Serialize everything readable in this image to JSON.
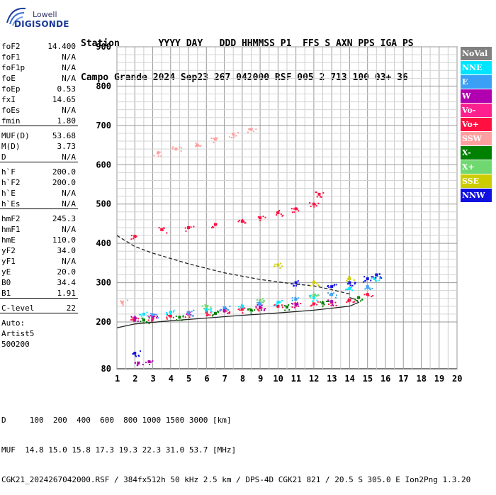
{
  "logo": {
    "line1": "Lowell",
    "line2": "DIGISONDE"
  },
  "header": {
    "line1": "Station       YYYY DAY   DDD HHMMSS P1  FFS S AXN PPS IGA PS",
    "line2": "Campo Grande 2024 Sep23 267 042000 RSF 005 2 713 100 03+ 36"
  },
  "params": {
    "group1": [
      {
        "name": "foF2",
        "value": "14.400"
      },
      {
        "name": "foF1",
        "value": "N/A"
      },
      {
        "name": "foF1p",
        "value": "N/A"
      },
      {
        "name": "foE",
        "value": "N/A"
      },
      {
        "name": "foEp",
        "value": "0.53"
      },
      {
        "name": "fxI",
        "value": "14.65"
      },
      {
        "name": "foEs",
        "value": "N/A"
      },
      {
        "name": "fmin",
        "value": "1.80"
      }
    ],
    "group2": [
      {
        "name": "MUF(D)",
        "value": "53.68"
      },
      {
        "name": "M(D)",
        "value": "3.73"
      },
      {
        "name": "D",
        "value": "N/A"
      }
    ],
    "group3": [
      {
        "name": "h`F",
        "value": "200.0"
      },
      {
        "name": "h`F2",
        "value": "200.0"
      },
      {
        "name": "h`E",
        "value": "N/A"
      },
      {
        "name": "h`Es",
        "value": "N/A"
      }
    ],
    "group4": [
      {
        "name": "hmF2",
        "value": "245.3"
      },
      {
        "name": "hmF1",
        "value": "N/A"
      },
      {
        "name": "hmE",
        "value": "110.0"
      },
      {
        "name": "yF2",
        "value": "34.0"
      },
      {
        "name": "yF1",
        "value": "N/A"
      },
      {
        "name": "yE",
        "value": "20.0"
      },
      {
        "name": "B0",
        "value": "34.4"
      },
      {
        "name": "B1",
        "value": "1.91"
      }
    ],
    "group5": [
      {
        "name": "C-level",
        "value": "22"
      }
    ],
    "auto": [
      "Auto:",
      "Artist5",
      "500200"
    ]
  },
  "legend": [
    {
      "label": "NoVal",
      "color": "#808080"
    },
    {
      "label": "NNE",
      "color": "#00e5ff"
    },
    {
      "label": "E",
      "color": "#3aa0f5"
    },
    {
      "label": "W",
      "color": "#b000b0"
    },
    {
      "label": "Vo-",
      "color": "#ff2090"
    },
    {
      "label": "Vo+",
      "color": "#ff1040"
    },
    {
      "label": "SSW",
      "color": "#ffa0a0"
    },
    {
      "label": "X-",
      "color": "#008000"
    },
    {
      "label": "X+",
      "color": "#70d870"
    },
    {
      "label": "SSE",
      "color": "#cccc00"
    },
    {
      "label": "NNW",
      "color": "#1010e0"
    }
  ],
  "footer": {
    "line1": "D     100  200  400  600  800 1000 1500 3000 [km]",
    "line2": "MUF  14.8 15.0 15.8 17.3 19.3 22.3 31.0 53.7 [MHz]",
    "line3": "CGK21_2024267042000.RSF / 384fx512h 50 kHz 2.5 km / DPS-4D CGK21 821 / 20.5 S 305.0 E Ion2Png 1.3.20"
  },
  "chart_data": {
    "type": "scatter",
    "title": "",
    "xlabel": "",
    "ylabel": "",
    "xlim": [
      1,
      20
    ],
    "ylim": [
      80,
      900
    ],
    "x_ticks": [
      "1",
      "2",
      "3",
      "4",
      "5",
      "6",
      "7",
      "8",
      "9",
      "10",
      "11",
      "12",
      "13",
      "14",
      "15",
      "16",
      "17",
      "18",
      "19",
      "20"
    ],
    "y_ticks": [
      "80",
      "200",
      "300",
      "400",
      "500",
      "600",
      "700",
      "800",
      "900"
    ],
    "grid": true,
    "legend_position": "right",
    "series": [
      {
        "name": "Vo+",
        "points": [
          [
            2,
            418
          ],
          [
            3.5,
            435
          ],
          [
            5,
            440
          ],
          [
            6.5,
            448
          ],
          [
            8,
            456
          ],
          [
            9,
            465
          ],
          [
            10,
            478
          ],
          [
            11,
            488
          ],
          [
            12,
            500
          ],
          [
            12.3,
            525
          ],
          [
            2,
            205
          ],
          [
            3,
            210
          ],
          [
            4,
            215
          ],
          [
            5,
            220
          ],
          [
            6,
            225
          ],
          [
            7,
            228
          ],
          [
            8,
            232
          ],
          [
            9,
            236
          ],
          [
            10,
            240
          ],
          [
            11,
            243
          ],
          [
            12,
            246
          ],
          [
            13,
            250
          ],
          [
            14,
            255
          ],
          [
            15,
            270
          ]
        ]
      },
      {
        "name": "W",
        "points": [
          [
            2,
            210
          ],
          [
            3,
            214
          ],
          [
            5,
            222
          ],
          [
            7,
            230
          ],
          [
            9,
            238
          ],
          [
            11,
            245
          ],
          [
            13,
            252
          ],
          [
            2.2,
            95
          ],
          [
            2.8,
            98
          ]
        ]
      },
      {
        "name": "NNE",
        "points": [
          [
            2.5,
            220
          ],
          [
            4,
            225
          ],
          [
            6,
            232
          ],
          [
            8,
            240
          ],
          [
            10,
            250
          ],
          [
            12,
            262
          ],
          [
            14,
            285
          ],
          [
            15.4,
            310
          ]
        ]
      },
      {
        "name": "E",
        "points": [
          [
            3,
            218
          ],
          [
            5,
            224
          ],
          [
            7,
            236
          ],
          [
            9,
            246
          ],
          [
            11,
            258
          ],
          [
            13,
            270
          ],
          [
            15,
            290
          ]
        ]
      },
      {
        "name": "X-",
        "points": [
          [
            2.5,
            205
          ],
          [
            4.5,
            212
          ],
          [
            6.5,
            222
          ],
          [
            8.5,
            230
          ],
          [
            10.5,
            238
          ],
          [
            12.5,
            248
          ],
          [
            14.5,
            262
          ]
        ]
      },
      {
        "name": "X+",
        "points": [
          [
            6,
            240
          ],
          [
            9,
            255
          ],
          [
            12,
            268
          ]
        ]
      },
      {
        "name": "SSW",
        "points": [
          [
            3.3,
            630
          ],
          [
            4.3,
            640
          ],
          [
            5.5,
            650
          ],
          [
            6.5,
            665
          ],
          [
            7.5,
            678
          ],
          [
            8.5,
            690
          ],
          [
            1.3,
            250
          ]
        ]
      },
      {
        "name": "SSE",
        "points": [
          [
            10,
            345
          ],
          [
            12,
            300
          ],
          [
            14,
            310
          ]
        ]
      },
      {
        "name": "NNW",
        "points": [
          [
            2,
            120
          ],
          [
            11,
            300
          ],
          [
            13,
            290
          ],
          [
            14,
            300
          ],
          [
            15,
            310
          ],
          [
            15.5,
            320
          ]
        ]
      }
    ],
    "curves": [
      {
        "name": "dashed",
        "points": [
          [
            1,
            420
          ],
          [
            2,
            392
          ],
          [
            3,
            375
          ],
          [
            5,
            348
          ],
          [
            7,
            325
          ],
          [
            9,
            308
          ],
          [
            11,
            296
          ],
          [
            12,
            292
          ],
          [
            13,
            282
          ],
          [
            14,
            271
          ]
        ]
      },
      {
        "name": "solid",
        "points": [
          [
            1,
            185
          ],
          [
            2,
            195
          ],
          [
            4,
            203
          ],
          [
            6,
            210
          ],
          [
            8,
            217
          ],
          [
            10,
            223
          ],
          [
            12,
            230
          ],
          [
            13,
            235
          ],
          [
            14,
            240
          ],
          [
            14.5,
            250
          ],
          [
            14.3,
            258
          ],
          [
            14,
            262
          ]
        ]
      }
    ]
  }
}
